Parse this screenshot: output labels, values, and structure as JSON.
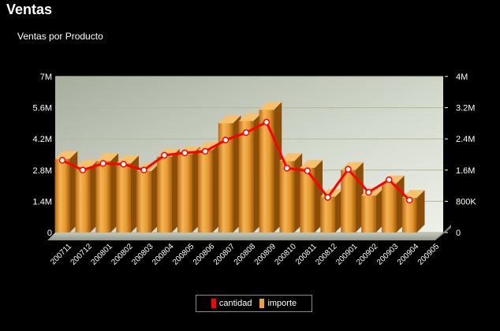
{
  "page": {
    "title": "Ventas"
  },
  "chart_data": {
    "type": "bar",
    "title": "Ventas por Producto",
    "categories": [
      "200711",
      "200712",
      "200801",
      "200802",
      "200803",
      "200804",
      "200805",
      "200806",
      "200807",
      "200808",
      "200809",
      "200810",
      "200811",
      "200812",
      "200901",
      "200902",
      "200903",
      "200904",
      "200905"
    ],
    "series": [
      {
        "name": "importe",
        "axis": "left",
        "chart_type": "bar",
        "color": "#f0a030",
        "values": [
          3300000,
          2900000,
          3200000,
          3100000,
          2750000,
          3400000,
          3500000,
          3700000,
          4900000,
          5000000,
          5500000,
          3200000,
          2900000,
          1600000,
          2800000,
          1650000,
          2200000,
          1550000,
          0
        ]
      },
      {
        "name": "cantidad",
        "axis": "right",
        "chart_type": "line",
        "color": "#ff0000",
        "values": [
          1850000,
          1600000,
          1770000,
          1750000,
          1600000,
          1980000,
          2040000,
          2080000,
          2370000,
          2560000,
          2830000,
          1650000,
          1580000,
          900000,
          1620000,
          1030000,
          1350000,
          830000,
          null
        ]
      }
    ],
    "y_left": {
      "min": 0,
      "max": 7000000,
      "ticks": [
        "0",
        "1.4M",
        "2.8M",
        "4.2M",
        "5.6M",
        "7M"
      ]
    },
    "y_right": {
      "min": 0,
      "max": 4000000,
      "ticks": [
        "0",
        "800K",
        "1.6M",
        "2.4M",
        "3.2M",
        "4M"
      ]
    },
    "grid": true,
    "legend_position": "bottom",
    "legend": [
      {
        "label": "cantidad",
        "color": "#ff0000"
      },
      {
        "label": "importe",
        "color": "#f0a030"
      }
    ]
  }
}
